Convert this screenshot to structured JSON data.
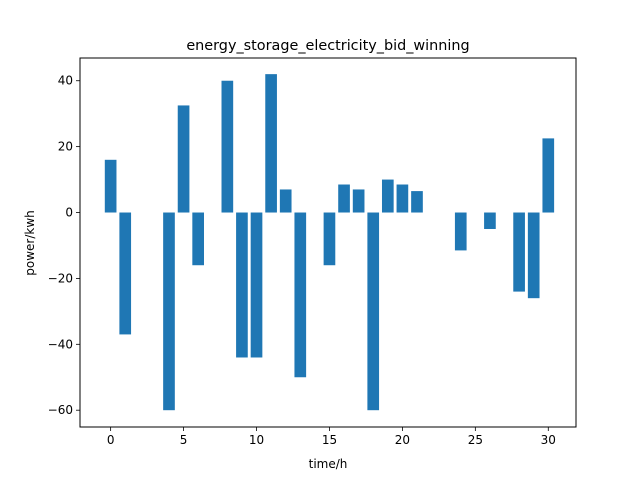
{
  "chart_data": {
    "type": "bar",
    "title": "energy_storage_electricity_bid_winning",
    "xlabel": "time/h",
    "ylabel": "power/kwh",
    "x": [
      0,
      1,
      2,
      3,
      4,
      5,
      6,
      7,
      8,
      9,
      10,
      11,
      12,
      13,
      14,
      15,
      16,
      17,
      18,
      19,
      20,
      21,
      22,
      23,
      24,
      25,
      26,
      27,
      28,
      29,
      30
    ],
    "values": [
      16,
      -37,
      0,
      0,
      -60,
      32.5,
      -16,
      0,
      40,
      -44,
      -44,
      42,
      7,
      -50,
      0,
      -16,
      8.5,
      7,
      -60,
      10,
      8.5,
      6.5,
      0,
      0,
      -11.5,
      0,
      -5,
      0,
      -24,
      -26,
      22.5
    ],
    "xlim": [
      -2.1,
      31.9
    ],
    "ylim": [
      -65.1,
      46.9
    ],
    "xticks": [
      0,
      5,
      10,
      15,
      20,
      25,
      30
    ],
    "yticks": [
      -60,
      -40,
      -20,
      0,
      20,
      40
    ],
    "bar_color": "#1f77b4",
    "grid": false,
    "legend": "none"
  }
}
